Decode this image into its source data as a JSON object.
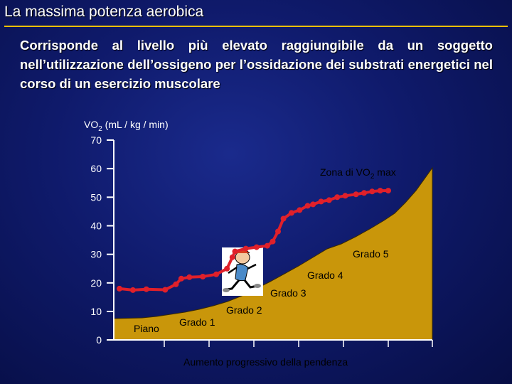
{
  "header": {
    "title": "La massima potenza aerobica",
    "description": "Corrisponde al livello più elevato raggiungibile da un soggetto nell’utilizzazione dell’ossigeno per l’ossidazione dei substrati energetici nel corso di un esercizio muscolare"
  },
  "colors": {
    "background": "#0f1a6b",
    "accent_rule": "#f0c000",
    "area_fill": "#c9960a",
    "data_red": "#e0202a"
  },
  "illustration": {
    "icon": "runner-cartoon-icon"
  },
  "chart_data": {
    "type": "line",
    "ylabel": "VO",
    "ylabel_sub": "2",
    "ylabel_unit": " (mL / kg / min)",
    "yticks": [
      0,
      10,
      20,
      30,
      40,
      50,
      60,
      70
    ],
    "ylim": [
      0,
      70
    ],
    "xlabel": "Aumento progressivo della pendenza",
    "stage_labels": [
      "Piano",
      "Grado 1",
      "Grado 2",
      "Grado 3",
      "Grado 4",
      "Grado 5"
    ],
    "annotation": {
      "text": "Zona di VO",
      "sub": "2",
      "tail": " max"
    },
    "series": [
      {
        "values": [
          [
            0.0,
            18.0
          ],
          [
            0.05,
            17.5
          ],
          [
            0.1,
            17.8
          ],
          [
            0.17,
            17.6
          ],
          [
            0.21,
            19.5
          ],
          [
            0.23,
            21.5
          ],
          [
            0.26,
            22.0
          ],
          [
            0.31,
            22.2
          ],
          [
            0.36,
            23.0
          ],
          [
            0.4,
            25.0
          ],
          [
            0.42,
            29.0
          ],
          [
            0.43,
            31.0
          ],
          [
            0.47,
            32.0
          ],
          [
            0.51,
            32.5
          ],
          [
            0.55,
            33.0
          ],
          [
            0.57,
            34.5
          ],
          [
            0.59,
            38.0
          ],
          [
            0.61,
            42.5
          ],
          [
            0.64,
            44.5
          ],
          [
            0.67,
            45.5
          ],
          [
            0.7,
            47.0
          ],
          [
            0.72,
            47.5
          ],
          [
            0.75,
            48.5
          ],
          [
            0.78,
            49.0
          ],
          [
            0.81,
            50.0
          ],
          [
            0.84,
            50.5
          ],
          [
            0.88,
            51.0
          ],
          [
            0.91,
            51.5
          ],
          [
            0.94,
            52.0
          ],
          [
            0.97,
            52.3
          ],
          [
            1.0,
            52.3
          ]
        ]
      }
    ]
  }
}
